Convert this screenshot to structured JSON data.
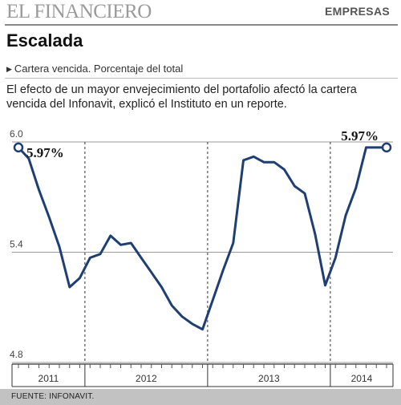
{
  "header": {
    "brand": "EL FINANCIERO",
    "section": "EMPRESAS"
  },
  "title": "Escalada",
  "subtitle": "Cartera vencida. Porcentaje del total",
  "description": "El efecto de un mayor envejecimiento del portafolio afectó la cartera vencida del Infonavit, explicó el Instituto en un reporte.",
  "source": "FUENTE: INFONAVIT.",
  "colors": {
    "line": "#1f3f73",
    "marker_fill": "#ffffff",
    "grid": "#999999",
    "footer_bg": "#c2c2c2"
  },
  "chart_data": {
    "type": "line",
    "title": "Escalada",
    "ylabel": "",
    "xlabel": "",
    "ylim": [
      4.8,
      6.0
    ],
    "yticks": [
      "6.0",
      "5.4",
      "4.8"
    ],
    "grid": true,
    "years": [
      {
        "label": "2011",
        "months": 7
      },
      {
        "label": "2012",
        "months": 12
      },
      {
        "label": "2013",
        "months": 12
      },
      {
        "label": "2014",
        "months": 6
      }
    ],
    "series": [
      {
        "values": [
          5.97,
          5.91,
          5.74,
          5.59,
          5.43,
          5.21,
          5.26,
          5.37,
          5.39,
          5.49,
          5.44,
          5.45,
          5.37,
          5.29,
          5.21,
          5.11,
          5.05,
          5.01,
          4.98,
          5.14,
          5.3,
          5.45,
          5.9,
          5.92,
          5.89,
          5.89,
          5.85,
          5.76,
          5.72,
          5.5,
          5.22,
          5.37,
          5.6,
          5.75,
          5.97,
          5.97,
          5.97
        ]
      }
    ],
    "annotations": [
      {
        "label": "5.97%",
        "index": 0
      },
      {
        "label": "5.97%",
        "index": 36
      }
    ]
  }
}
